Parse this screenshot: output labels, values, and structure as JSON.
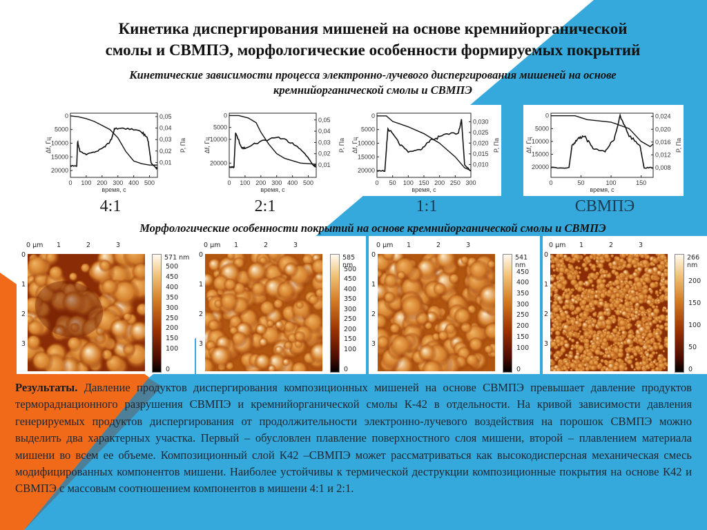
{
  "colors": {
    "blue": "#35a9dc",
    "orange": "#f06a1a",
    "text": "#111111"
  },
  "title": {
    "line1": "Кинетика диспергирования мишеней на основе кремнийорганической",
    "line2": "смолы и СВМПЭ, морфологические особенности формируемых покрытий"
  },
  "subtitle": {
    "line1": "Кинетические зависимости процесса электронно-лучевого диспергирования мишеней на основе",
    "line2": "кремнийорганической смолы и СВМПЭ"
  },
  "chart_data": [
    {
      "type": "line",
      "label": "4:1",
      "xlabel": "время, с",
      "ylabel": "Δf, Гц",
      "y2label": "P, Па",
      "xlim": [
        0,
        550
      ],
      "ylim": [
        22500,
        -1000
      ],
      "y2lim": [
        -0.003,
        0.053
      ],
      "xticks": [
        "0",
        "100",
        "200",
        "300",
        "400",
        "500"
      ],
      "xtick_values": [
        0,
        100,
        200,
        300,
        400,
        500
      ],
      "yticks": [
        "0",
        "5000",
        "10000",
        "15000",
        "20000"
      ],
      "ytick_values": [
        0,
        5000,
        10000,
        15000,
        20000
      ],
      "y2ticks": [
        "0,05",
        "0,04",
        "0,03",
        "0,02",
        "0,01"
      ],
      "y2tick_values": [
        0.05,
        0.04,
        0.03,
        0.02,
        0.01
      ],
      "series": [
        {
          "name": "Δf",
          "axis": "left",
          "x": [
            0,
            50,
            100,
            150,
            200,
            250,
            300,
            350,
            400,
            450,
            500,
            550
          ],
          "y": [
            0,
            300,
            1000,
            2000,
            3500,
            5000,
            8000,
            13000,
            16500,
            17500,
            18000,
            18000
          ]
        },
        {
          "name": "P",
          "axis": "right",
          "x": [
            0,
            40,
            45,
            60,
            100,
            170,
            220,
            260,
            280,
            350,
            450,
            490,
            510,
            540,
            550
          ],
          "y": [
            0.007,
            0.007,
            0.028,
            0.02,
            0.017,
            0.02,
            0.024,
            0.03,
            0.04,
            0.04,
            0.037,
            0.03,
            0.01,
            0.005,
            0.005
          ]
        }
      ]
    },
    {
      "type": "line",
      "label": "2:1",
      "xlabel": "время, с",
      "ylabel": "Δf, Гц",
      "y2label": "P, Па",
      "xlim": [
        0,
        550
      ],
      "ylim": [
        26000,
        -1000
      ],
      "y2lim": [
        -0.001,
        0.056
      ],
      "xticks": [
        "0",
        "100",
        "200",
        "300",
        "400",
        "500"
      ],
      "xtick_values": [
        0,
        100,
        200,
        300,
        400,
        500
      ],
      "yticks": [
        "0",
        "5000",
        "10000",
        "20000"
      ],
      "ytick_values": [
        0,
        5000,
        10000,
        20000
      ],
      "y2ticks": [
        "0,05",
        "0,04",
        "0,03",
        "0,02",
        "0,01"
      ],
      "y2tick_values": [
        0.05,
        0.04,
        0.03,
        0.02,
        0.01
      ],
      "series": [
        {
          "name": "Δf",
          "axis": "left",
          "x": [
            0,
            60,
            120,
            170,
            200,
            250,
            300,
            350,
            450,
            550
          ],
          "y": [
            0,
            0,
            1000,
            3000,
            7000,
            12000,
            16000,
            18000,
            20000,
            20500
          ]
        },
        {
          "name": "P",
          "axis": "right",
          "x": [
            0,
            30,
            40,
            80,
            100,
            180,
            300,
            400,
            480,
            530,
            550
          ],
          "y": [
            0.008,
            0.008,
            0.038,
            0.025,
            0.025,
            0.03,
            0.035,
            0.03,
            0.02,
            0.01,
            0.008
          ]
        }
      ]
    },
    {
      "type": "line",
      "label": "1:1",
      "xlabel": "время, с",
      "ylabel": "Δf, Гц",
      "y2label": "P, Па",
      "xlim": [
        0,
        300
      ],
      "ylim": [
        22500,
        -1000
      ],
      "y2lim": [
        0.004,
        0.034
      ],
      "xticks": [
        "0",
        "50",
        "100",
        "150",
        "200",
        "250",
        "300"
      ],
      "xtick_values": [
        0,
        50,
        100,
        150,
        200,
        250,
        300
      ],
      "yticks": [
        "0",
        "5000",
        "10000",
        "15000",
        "20000"
      ],
      "ytick_values": [
        0,
        5000,
        10000,
        15000,
        20000
      ],
      "y2ticks": [
        "0,030",
        "0,025",
        "0,020",
        "0,015",
        "0,010"
      ],
      "y2tick_values": [
        0.03,
        0.025,
        0.02,
        0.015,
        0.01
      ],
      "series": [
        {
          "name": "Δf",
          "axis": "left",
          "x": [
            0,
            30,
            50,
            100,
            150,
            200,
            250,
            280,
            300
          ],
          "y": [
            0,
            0,
            2000,
            4000,
            6500,
            10000,
            15000,
            19000,
            20000
          ]
        },
        {
          "name": "P",
          "axis": "right",
          "x": [
            0,
            25,
            35,
            70,
            100,
            140,
            170,
            200,
            260,
            270,
            280,
            300
          ],
          "y": [
            0.007,
            0.007,
            0.027,
            0.02,
            0.016,
            0.017,
            0.021,
            0.023,
            0.025,
            0.031,
            0.01,
            0.007
          ]
        }
      ]
    },
    {
      "type": "line",
      "label": "СВМПЭ",
      "xlabel": "время, с",
      "ylabel": "Δf, Гц",
      "y2label": "P, Па",
      "xlim": [
        0,
        170
      ],
      "ylim": [
        24000,
        -1000
      ],
      "y2lim": [
        0.005,
        0.025
      ],
      "xticks": [
        "0",
        "50",
        "100",
        "150"
      ],
      "xtick_values": [
        0,
        50,
        100,
        150
      ],
      "yticks": [
        "0",
        "5000",
        "10000",
        "15000",
        "20000"
      ],
      "ytick_values": [
        0,
        5000,
        10000,
        15000,
        20000
      ],
      "y2ticks": [
        "0,024",
        "0,020",
        "0,016",
        "0,012",
        "0,008"
      ],
      "y2tick_values": [
        0.024,
        0.02,
        0.016,
        0.012,
        0.008
      ],
      "series": [
        {
          "name": "Δf",
          "axis": "left",
          "x": [
            0,
            40,
            60,
            100,
            130,
            150,
            165,
            170
          ],
          "y": [
            0,
            0,
            1500,
            2500,
            5000,
            10000,
            12000,
            11000
          ]
        },
        {
          "name": "P",
          "axis": "right",
          "x": [
            0,
            30,
            35,
            45,
            55,
            70,
            90,
            105,
            115,
            130,
            148,
            155,
            170
          ],
          "y": [
            0.008,
            0.008,
            0.015,
            0.017,
            0.018,
            0.014,
            0.013,
            0.017,
            0.024,
            0.018,
            0.015,
            0.008,
            0.008
          ]
        }
      ]
    }
  ],
  "morphology": {
    "heading": "Морфологические особенности покрытий  на основе кремнийорганической смолы и СВМПЭ",
    "axis_labels": [
      "0 µm",
      "1",
      "2",
      "3"
    ],
    "side_labels": [
      "0",
      "1",
      "2",
      "3"
    ],
    "images": [
      {
        "max": "571 nm",
        "ticks": [
          "500",
          "450",
          "400",
          "350",
          "300",
          "250",
          "200",
          "150",
          "100",
          "0"
        ],
        "tick_values": [
          500,
          450,
          400,
          350,
          300,
          250,
          200,
          150,
          100,
          0
        ],
        "zmax": 571
      },
      {
        "max": "585 nm",
        "ticks": [
          "500",
          "450",
          "400",
          "350",
          "300",
          "250",
          "200",
          "150",
          "100",
          "0"
        ],
        "tick_values": [
          500,
          450,
          400,
          350,
          300,
          250,
          200,
          150,
          100,
          0
        ],
        "zmax": 585
      },
      {
        "max": "541 nm",
        "ticks": [
          "450",
          "400",
          "350",
          "300",
          "250",
          "200",
          "150",
          "100",
          "0"
        ],
        "tick_values": [
          450,
          400,
          350,
          300,
          250,
          200,
          150,
          100,
          0
        ],
        "zmax": 541
      },
      {
        "max": "266 nm",
        "ticks": [
          "200",
          "150",
          "100",
          "50",
          "0"
        ],
        "tick_values": [
          200,
          150,
          100,
          50,
          0
        ],
        "zmax": 266
      }
    ]
  },
  "results": {
    "label": "Результаты.",
    "text": " Давление продуктов диспергирования композиционных мишеней на основе СВМПЭ превышает давление продуктов термораднационного разрушения СВМПЭ и кремнийорганической смолы К-42 в отдельности. На кривой зависимости давления генерируемых продуктов диспергирования от продолжительности электронно-лучевого воздействия на порошок СВМПЭ можно выделить два характерных участка.  Первый – обусловлен плавление поверхностного слоя мишени, второй – плавлением материала мишени во всем ее объеме. Композиционный слой К42 –СВМПЭ может рассматриваться как высокодисперсная механическая смесь модифицированных компонентов мишени. Наиболее устойчивы к термической деструкции композиционные покрытия на основе К42 и СВМПЭ с массовым соотношением компонентов в мишени 4:1 и 2:1."
  }
}
